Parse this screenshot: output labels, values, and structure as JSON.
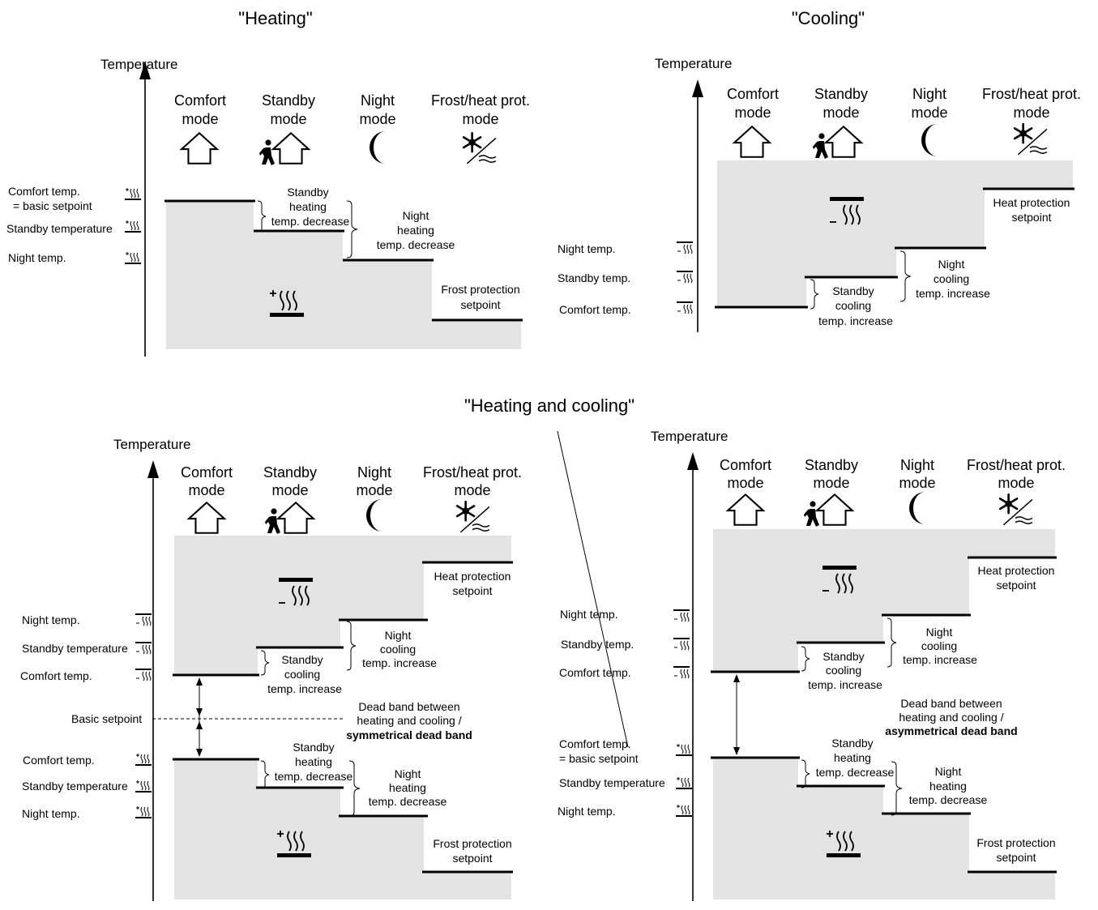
{
  "titles": {
    "heating": "\"Heating\"",
    "cooling": "\"Cooling\"",
    "heating_and_cooling": "\"Heating and cooling\""
  },
  "axis_label": "Temperature",
  "modes": {
    "comfort": [
      "Comfort",
      "mode"
    ],
    "standby": [
      "Standby",
      "mode"
    ],
    "night": [
      "Night",
      "mode"
    ],
    "frost": [
      "Frost/heat prot.",
      "mode"
    ]
  },
  "icons": [
    "house-icon",
    "running-person-icon",
    "moon-icon",
    "snowflake-icon",
    "heating-icon",
    "cooling-icon"
  ],
  "heating": {
    "levels": {
      "comfort": [
        "Comfort temp.",
        "= basic setpoint"
      ],
      "standby": "Standby temperature",
      "night": "Night temp."
    },
    "notes": {
      "standby": [
        "Standby",
        "heating",
        "temp. decrease"
      ],
      "night": [
        "Night",
        "heating",
        "temp. decrease"
      ],
      "frost": [
        "Frost protection",
        "setpoint"
      ]
    }
  },
  "cooling": {
    "levels": {
      "night": "Night temp.",
      "standby": "Standby temp.",
      "comfort": "Comfort temp."
    },
    "notes": {
      "heat": [
        "Heat protection",
        "setpoint"
      ],
      "night": [
        "Night",
        "cooling",
        "temp. increase"
      ],
      "standby": [
        "Standby",
        "cooling",
        "temp. increase"
      ]
    }
  },
  "combined_left": {
    "cool_levels": {
      "night": "Night temp.",
      "standby": "Standby temperature",
      "comfort": "Comfort temp."
    },
    "basic": "Basic setpoint",
    "heat_levels": {
      "comfort": "Comfort temp.",
      "standby": "Standby temperature",
      "night": "Night temp."
    },
    "notes": {
      "heat_prot": [
        "Heat protection",
        "setpoint"
      ],
      "night_cool": [
        "Night",
        "cooling",
        "temp. increase"
      ],
      "standby_cool": [
        "Standby",
        "cooling",
        "temp. increase"
      ],
      "dead_band": [
        "Dead band between",
        "heating and cooling /",
        "symmetrical dead band"
      ],
      "standby_heat": [
        "Standby",
        "heating",
        "temp. decrease"
      ],
      "night_heat": [
        "Night",
        "heating",
        "temp. decrease"
      ],
      "frost": [
        "Frost protection",
        "setpoint"
      ]
    }
  },
  "combined_right": {
    "cool_levels": {
      "night": "Night temp.",
      "standby": "Standby  temp.",
      "comfort": "Comfort temp."
    },
    "heat_levels": {
      "comfort": [
        "Comfort temp.",
        "= basic setpoint"
      ],
      "standby": "Standby temperature",
      "night": "Night temp."
    },
    "notes": {
      "heat_prot": [
        "Heat protection",
        "setpoint"
      ],
      "night_cool": [
        "Night",
        "cooling",
        "temp. increase"
      ],
      "standby_cool": [
        "Standby",
        "cooling",
        "temp. increase"
      ],
      "dead_band": [
        "Dead band between",
        "heating and cooling /",
        "asymmetrical dead band"
      ],
      "standby_heat": [
        "Standby",
        "heating",
        "temp. decrease"
      ],
      "night_heat": [
        "Night",
        "heating",
        "temp. decrease"
      ],
      "frost": [
        "Frost protection",
        "setpoint"
      ]
    }
  }
}
